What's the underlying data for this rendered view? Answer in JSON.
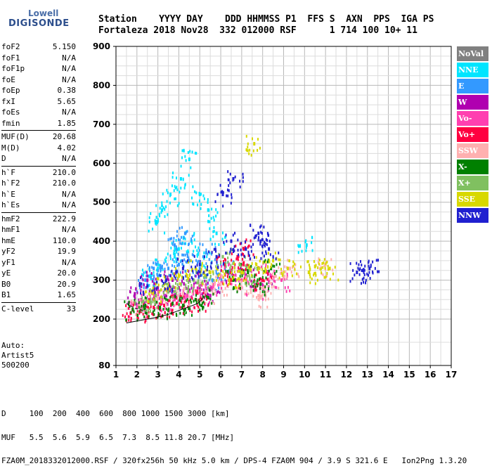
{
  "logo": {
    "line1": "Lowell",
    "line2": "DIGISONDE"
  },
  "header": {
    "row1": "Station    YYYY DAY    DDD HHMMSS P1  FFS S  AXN  PPS  IGA PS",
    "row2": "Fortaleza 2018 Nov28  332 012000 RSF      1 714 100 10+ 11"
  },
  "params": [
    {
      "group": [
        {
          "name": "foF2",
          "value": "5.150"
        },
        {
          "name": "foF1",
          "value": "N/A"
        },
        {
          "name": "foF1p",
          "value": "N/A"
        },
        {
          "name": "foE",
          "value": "N/A"
        },
        {
          "name": "foEp",
          "value": "0.38"
        },
        {
          "name": "fxI",
          "value": "5.65"
        },
        {
          "name": "foEs",
          "value": "N/A"
        },
        {
          "name": "fmin",
          "value": "1.85"
        }
      ]
    },
    {
      "group": [
        {
          "name": "MUF(D)",
          "value": "20.68"
        },
        {
          "name": "M(D)",
          "value": "4.02"
        },
        {
          "name": "D",
          "value": "N/A"
        }
      ]
    },
    {
      "group": [
        {
          "name": "h`F",
          "value": "210.0"
        },
        {
          "name": "h`F2",
          "value": "210.0"
        },
        {
          "name": "h`E",
          "value": "N/A"
        },
        {
          "name": "h`Es",
          "value": "N/A"
        }
      ]
    },
    {
      "group": [
        {
          "name": "hmF2",
          "value": "222.9"
        },
        {
          "name": "hmF1",
          "value": "N/A"
        },
        {
          "name": "hmE",
          "value": "110.0"
        },
        {
          "name": "yF2",
          "value": "19.9"
        },
        {
          "name": "yF1",
          "value": "N/A"
        },
        {
          "name": "yE",
          "value": "20.0"
        },
        {
          "name": "B0",
          "value": "20.9"
        },
        {
          "name": "B1",
          "value": "1.65"
        }
      ]
    },
    {
      "group": [
        {
          "name": "C-level",
          "value": "33"
        }
      ]
    }
  ],
  "autoscaling": {
    "line1": "Auto:",
    "line2": "Artist5",
    "line3": "500200"
  },
  "legend": [
    {
      "label": "NoVal",
      "color": "#808080"
    },
    {
      "label": "NNE",
      "color": "#00e5ff"
    },
    {
      "label": "E",
      "color": "#3399ff"
    },
    {
      "label": "W",
      "color": "#b000b0"
    },
    {
      "label": "Vo-",
      "color": "#ff40b0"
    },
    {
      "label": "Vo+",
      "color": "#ff0040"
    },
    {
      "label": "SSW",
      "color": "#ffb0b0"
    },
    {
      "label": "X-",
      "color": "#008000"
    },
    {
      "label": "X+",
      "color": "#80c060"
    },
    {
      "label": "SSE",
      "color": "#d8d800"
    },
    {
      "label": "NNW",
      "color": "#2020d0"
    }
  ],
  "footer": {
    "row1": "D     100  200  400  600  800 1000 1500 3000 [km]",
    "row2": "MUF   5.5  5.6  5.9  6.5  7.3  8.5 11.8 20.7 [MHz]",
    "row3": "FZA0M_2018332012000.RSF / 320fx256h 50 kHz 5.0 km / DPS-4 FZA0M 904 / 3.9 S 321.6 E   Ion2Png 1.3.20"
  },
  "chart_data": {
    "type": "scatter",
    "title": "",
    "xlabel": "",
    "ylabel": "",
    "xlim": [
      1,
      17
    ],
    "ylim": [
      80,
      900
    ],
    "x_ticks": [
      1,
      2,
      3,
      4,
      5,
      6,
      7,
      8,
      9,
      10,
      11,
      12,
      13,
      14,
      15,
      16,
      17
    ],
    "y_ticks": [
      80,
      200,
      300,
      400,
      500,
      600,
      700,
      800,
      900
    ],
    "grid": true,
    "legend_position": "right",
    "series": [
      {
        "name": "NNE",
        "points": [
          [
            2.9,
            450
          ],
          [
            3.2,
            480
          ],
          [
            3.6,
            520
          ],
          [
            4.1,
            560
          ],
          [
            4.5,
            610
          ],
          [
            5.0,
            520
          ],
          [
            5.4,
            480
          ],
          [
            4.0,
            380
          ],
          [
            3.0,
            330
          ],
          [
            5.8,
            420
          ],
          [
            2.6,
            310
          ],
          [
            3.8,
            360
          ],
          [
            4.6,
            400
          ],
          [
            5.2,
            360
          ],
          [
            10.1,
            390
          ]
        ]
      },
      {
        "name": "E",
        "points": [
          [
            2.4,
            300
          ],
          [
            3.0,
            310
          ],
          [
            3.5,
            330
          ],
          [
            4.0,
            340
          ],
          [
            4.5,
            350
          ],
          [
            5.0,
            330
          ],
          [
            5.6,
            300
          ],
          [
            3.8,
            390
          ],
          [
            4.3,
            420
          ],
          [
            2.8,
            330
          ],
          [
            5.3,
            370
          ],
          [
            6.2,
            330
          ]
        ]
      },
      {
        "name": "W",
        "points": [
          [
            1.9,
            265
          ],
          [
            2.5,
            300
          ],
          [
            3.0,
            280
          ],
          [
            3.4,
            260
          ],
          [
            4.0,
            280
          ],
          [
            4.5,
            300
          ],
          [
            5.0,
            280
          ],
          [
            5.5,
            260
          ],
          [
            6.5,
            320
          ],
          [
            7.2,
            310
          ],
          [
            8.0,
            300
          ],
          [
            2.2,
            250
          ],
          [
            3.7,
            300
          ]
        ]
      },
      {
        "name": "Vo-",
        "points": [
          [
            2.0,
            230
          ],
          [
            2.6,
            250
          ],
          [
            3.2,
            240
          ],
          [
            3.8,
            250
          ],
          [
            4.4,
            260
          ],
          [
            5.0,
            270
          ],
          [
            5.6,
            280
          ],
          [
            6.3,
            320
          ],
          [
            7.0,
            300
          ],
          [
            7.6,
            280
          ],
          [
            8.2,
            320
          ],
          [
            8.9,
            300
          ]
        ]
      },
      {
        "name": "Vo+",
        "points": [
          [
            1.7,
            215
          ],
          [
            2.2,
            220
          ],
          [
            2.8,
            230
          ],
          [
            3.3,
            235
          ],
          [
            3.9,
            240
          ],
          [
            4.5,
            245
          ],
          [
            5.1,
            250
          ],
          [
            6.2,
            340
          ],
          [
            6.8,
            360
          ],
          [
            7.4,
            330
          ],
          [
            8.0,
            300
          ],
          [
            6.5,
            300
          ],
          [
            7.1,
            380
          ]
        ]
      },
      {
        "name": "SSW",
        "points": [
          [
            2.1,
            235
          ],
          [
            3.0,
            255
          ],
          [
            4.2,
            265
          ],
          [
            5.3,
            270
          ],
          [
            6.0,
            290
          ],
          [
            7.2,
            290
          ],
          [
            8.1,
            280
          ],
          [
            8.6,
            310
          ],
          [
            9.3,
            330
          ],
          [
            11.0,
            340
          ],
          [
            7.8,
            260
          ]
        ]
      },
      {
        "name": "X-",
        "points": [
          [
            1.8,
            225
          ],
          [
            2.4,
            235
          ],
          [
            3.1,
            230
          ],
          [
            3.7,
            240
          ],
          [
            4.2,
            235
          ],
          [
            4.8,
            250
          ],
          [
            5.4,
            255
          ],
          [
            6.6,
            300
          ],
          [
            7.3,
            320
          ],
          [
            7.9,
            290
          ],
          [
            8.4,
            330
          ]
        ]
      },
      {
        "name": "X+",
        "points": [
          [
            2.3,
            245
          ],
          [
            2.9,
            260
          ],
          [
            3.5,
            270
          ],
          [
            4.1,
            290
          ],
          [
            4.7,
            300
          ],
          [
            5.3,
            310
          ],
          [
            6.1,
            360
          ],
          [
            6.9,
            340
          ],
          [
            7.5,
            310
          ]
        ]
      },
      {
        "name": "SSE",
        "points": [
          [
            2.7,
            270
          ],
          [
            3.3,
            290
          ],
          [
            4.0,
            310
          ],
          [
            4.8,
            330
          ],
          [
            5.5,
            320
          ],
          [
            6.4,
            300
          ],
          [
            7.0,
            320
          ],
          [
            7.7,
            340
          ],
          [
            8.5,
            350
          ],
          [
            9.2,
            330
          ],
          [
            10.2,
            320
          ],
          [
            10.5,
            335
          ],
          [
            11.2,
            330
          ],
          [
            7.6,
            650
          ]
        ]
      },
      {
        "name": "NNW",
        "points": [
          [
            2.5,
            285
          ],
          [
            3.4,
            300
          ],
          [
            4.2,
            330
          ],
          [
            5.0,
            340
          ],
          [
            5.8,
            360
          ],
          [
            6.5,
            400
          ],
          [
            7.2,
            380
          ],
          [
            7.9,
            400
          ],
          [
            8.3,
            380
          ],
          [
            7.8,
            420
          ],
          [
            12.5,
            320
          ],
          [
            12.8,
            325
          ],
          [
            13.1,
            330
          ],
          [
            6.1,
            520
          ],
          [
            6.6,
            560
          ]
        ]
      }
    ],
    "trace_curve": [
      [
        1.5,
        190
      ],
      [
        2.0,
        195
      ],
      [
        2.5,
        200
      ],
      [
        3.0,
        205
      ],
      [
        3.5,
        212
      ],
      [
        4.0,
        222
      ],
      [
        4.5,
        232
      ],
      [
        4.9,
        240
      ],
      [
        5.1,
        250
      ],
      [
        5.15,
        262
      ]
    ],
    "trace_curve_upper": [
      [
        1.5,
        240
      ],
      [
        1.9,
        228
      ],
      [
        2.3,
        222
      ]
    ]
  }
}
